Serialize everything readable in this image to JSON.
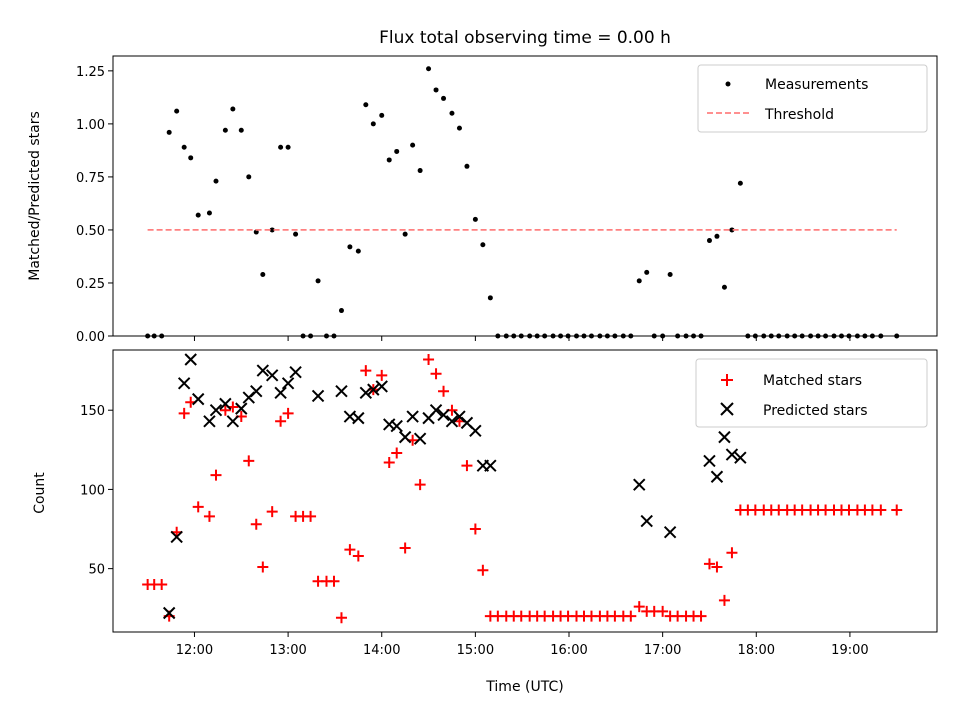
{
  "chart_data": {
    "type": "scatter",
    "title": "Flux total observing time = 0.00 h",
    "xlabel": "Time (UTC)",
    "x_unit": "hours UTC",
    "xlim": [
      11.13,
      19.93
    ],
    "x_ticks": [
      12,
      13,
      14,
      15,
      16,
      17,
      18,
      19
    ],
    "x_tick_labels": [
      "12:00",
      "13:00",
      "14:00",
      "15:00",
      "16:00",
      "17:00",
      "18:00",
      "19:00"
    ],
    "panels": [
      {
        "ylabel": "Matched/Predicted stars",
        "ylim": [
          0,
          1.32
        ],
        "y_ticks": [
          0,
          0.25,
          0.5,
          0.75,
          1.0,
          1.25
        ],
        "y_tick_labels": [
          "0.00",
          "0.25",
          "0.50",
          "0.75",
          "1.00",
          "1.25"
        ],
        "legend_position": "top-right",
        "series": [
          {
            "name": "Measurements",
            "marker": "dot",
            "color": "#000000",
            "points": [
              [
                11.5,
                0
              ],
              [
                11.57,
                0
              ],
              [
                11.65,
                0
              ],
              [
                11.73,
                0.96
              ],
              [
                11.81,
                1.06
              ],
              [
                11.89,
                0.89
              ],
              [
                11.96,
                0.84
              ],
              [
                12.04,
                0.57
              ],
              [
                12.16,
                0.58
              ],
              [
                12.23,
                0.73
              ],
              [
                12.33,
                0.97
              ],
              [
                12.41,
                1.07
              ],
              [
                12.5,
                0.97
              ],
              [
                12.58,
                0.75
              ],
              [
                12.66,
                0.49
              ],
              [
                12.73,
                0.29
              ],
              [
                12.83,
                0.5
              ],
              [
                12.92,
                0.89
              ],
              [
                13.0,
                0.89
              ],
              [
                13.08,
                0.48
              ],
              [
                13.16,
                0
              ],
              [
                13.24,
                0
              ],
              [
                13.32,
                0.26
              ],
              [
                13.41,
                0
              ],
              [
                13.49,
                0
              ],
              [
                13.57,
                0.12
              ],
              [
                13.66,
                0.42
              ],
              [
                13.75,
                0.4
              ],
              [
                13.83,
                1.09
              ],
              [
                13.91,
                1.0
              ],
              [
                14.0,
                1.04
              ],
              [
                14.08,
                0.83
              ],
              [
                14.16,
                0.87
              ],
              [
                14.25,
                0.48
              ],
              [
                14.33,
                0.9
              ],
              [
                14.41,
                0.78
              ],
              [
                14.5,
                1.26
              ],
              [
                14.58,
                1.16
              ],
              [
                14.66,
                1.12
              ],
              [
                14.75,
                1.05
              ],
              [
                14.83,
                0.98
              ],
              [
                14.91,
                0.8
              ],
              [
                15.0,
                0.55
              ],
              [
                15.08,
                0.43
              ],
              [
                15.16,
                0.18
              ],
              [
                15.24,
                0
              ],
              [
                15.33,
                0
              ],
              [
                15.41,
                0
              ],
              [
                15.49,
                0
              ],
              [
                15.58,
                0
              ],
              [
                15.66,
                0
              ],
              [
                15.74,
                0
              ],
              [
                15.83,
                0
              ],
              [
                15.91,
                0
              ],
              [
                15.99,
                0
              ],
              [
                16.08,
                0
              ],
              [
                16.16,
                0
              ],
              [
                16.24,
                0
              ],
              [
                16.33,
                0
              ],
              [
                16.41,
                0
              ],
              [
                16.49,
                0
              ],
              [
                16.58,
                0
              ],
              [
                16.66,
                0
              ],
              [
                16.75,
                0.26
              ],
              [
                16.83,
                0.3
              ],
              [
                16.91,
                0
              ],
              [
                17.0,
                0
              ],
              [
                17.08,
                0.29
              ],
              [
                17.16,
                0
              ],
              [
                17.25,
                0
              ],
              [
                17.33,
                0
              ],
              [
                17.41,
                0
              ],
              [
                17.5,
                0.45
              ],
              [
                17.58,
                0.47
              ],
              [
                17.66,
                0.23
              ],
              [
                17.74,
                0.5
              ],
              [
                17.83,
                0.72
              ],
              [
                17.91,
                0
              ],
              [
                17.99,
                0
              ],
              [
                18.08,
                0
              ],
              [
                18.16,
                0
              ],
              [
                18.24,
                0
              ],
              [
                18.33,
                0
              ],
              [
                18.41,
                0
              ],
              [
                18.49,
                0
              ],
              [
                18.58,
                0
              ],
              [
                18.66,
                0
              ],
              [
                18.74,
                0
              ],
              [
                18.83,
                0
              ],
              [
                18.91,
                0
              ],
              [
                18.99,
                0
              ],
              [
                19.08,
                0
              ],
              [
                19.16,
                0
              ],
              [
                19.24,
                0
              ],
              [
                19.33,
                0
              ],
              [
                19.5,
                0
              ]
            ]
          },
          {
            "name": "Threshold",
            "marker": "dashed-line",
            "color": "#ff8080",
            "points": [
              [
                11.5,
                0.5
              ],
              [
                19.5,
                0.5
              ]
            ]
          }
        ]
      },
      {
        "ylabel": "Count",
        "ylim": [
          10,
          188
        ],
        "y_ticks": [
          50,
          100,
          150
        ],
        "y_tick_labels": [
          "50",
          "100",
          "150"
        ],
        "legend_position": "top-right",
        "series": [
          {
            "name": "Matched stars",
            "marker": "plus",
            "color": "#ff0000",
            "points": [
              [
                11.5,
                40
              ],
              [
                11.57,
                40
              ],
              [
                11.65,
                40
              ],
              [
                11.73,
                20
              ],
              [
                11.81,
                73
              ],
              [
                11.89,
                148
              ],
              [
                11.96,
                155
              ],
              [
                12.04,
                89
              ],
              [
                12.16,
                83
              ],
              [
                12.23,
                109
              ],
              [
                12.33,
                150
              ],
              [
                12.41,
                152
              ],
              [
                12.5,
                146
              ],
              [
                12.58,
                118
              ],
              [
                12.66,
                78
              ],
              [
                12.73,
                51
              ],
              [
                12.83,
                86
              ],
              [
                12.92,
                143
              ],
              [
                13.0,
                148
              ],
              [
                13.08,
                83
              ],
              [
                13.16,
                83
              ],
              [
                13.24,
                83
              ],
              [
                13.32,
                42
              ],
              [
                13.41,
                42
              ],
              [
                13.49,
                42
              ],
              [
                13.57,
                19
              ],
              [
                13.66,
                62
              ],
              [
                13.75,
                58
              ],
              [
                13.83,
                175
              ],
              [
                13.91,
                163
              ],
              [
                14.0,
                172
              ],
              [
                14.08,
                117
              ],
              [
                14.16,
                123
              ],
              [
                14.25,
                63
              ],
              [
                14.33,
                131
              ],
              [
                14.41,
                103
              ],
              [
                14.5,
                182
              ],
              [
                14.58,
                173
              ],
              [
                14.66,
                162
              ],
              [
                14.75,
                150
              ],
              [
                14.83,
                143
              ],
              [
                14.91,
                115
              ],
              [
                15.0,
                75
              ],
              [
                15.08,
                49
              ],
              [
                15.16,
                20
              ],
              [
                15.24,
                20
              ],
              [
                15.33,
                20
              ],
              [
                15.41,
                20
              ],
              [
                15.49,
                20
              ],
              [
                15.58,
                20
              ],
              [
                15.66,
                20
              ],
              [
                15.74,
                20
              ],
              [
                15.83,
                20
              ],
              [
                15.91,
                20
              ],
              [
                15.99,
                20
              ],
              [
                16.08,
                20
              ],
              [
                16.16,
                20
              ],
              [
                16.24,
                20
              ],
              [
                16.33,
                20
              ],
              [
                16.41,
                20
              ],
              [
                16.49,
                20
              ],
              [
                16.58,
                20
              ],
              [
                16.66,
                20
              ],
              [
                16.75,
                26
              ],
              [
                16.83,
                23
              ],
              [
                16.91,
                23
              ],
              [
                17.0,
                23
              ],
              [
                17.08,
                20
              ],
              [
                17.16,
                20
              ],
              [
                17.25,
                20
              ],
              [
                17.33,
                20
              ],
              [
                17.41,
                20
              ],
              [
                17.5,
                53
              ],
              [
                17.58,
                51
              ],
              [
                17.66,
                30
              ],
              [
                17.74,
                60
              ],
              [
                17.83,
                87
              ],
              [
                17.91,
                87
              ],
              [
                17.99,
                87
              ],
              [
                18.08,
                87
              ],
              [
                18.16,
                87
              ],
              [
                18.24,
                87
              ],
              [
                18.33,
                87
              ],
              [
                18.41,
                87
              ],
              [
                18.49,
                87
              ],
              [
                18.58,
                87
              ],
              [
                18.66,
                87
              ],
              [
                18.74,
                87
              ],
              [
                18.83,
                87
              ],
              [
                18.91,
                87
              ],
              [
                18.99,
                87
              ],
              [
                19.08,
                87
              ],
              [
                19.16,
                87
              ],
              [
                19.24,
                87
              ],
              [
                19.33,
                87
              ],
              [
                19.5,
                87
              ]
            ]
          },
          {
            "name": "Predicted stars",
            "marker": "x",
            "color": "#000000",
            "points": [
              [
                11.73,
                22
              ],
              [
                11.81,
                70
              ],
              [
                11.89,
                167
              ],
              [
                11.96,
                182
              ],
              [
                12.04,
                157
              ],
              [
                12.16,
                143
              ],
              [
                12.23,
                150
              ],
              [
                12.33,
                154
              ],
              [
                12.41,
                143
              ],
              [
                12.5,
                151
              ],
              [
                12.58,
                158
              ],
              [
                12.66,
                162
              ],
              [
                12.73,
                175
              ],
              [
                12.83,
                172
              ],
              [
                12.92,
                161
              ],
              [
                13.0,
                167
              ],
              [
                13.08,
                174
              ],
              [
                13.32,
                159
              ],
              [
                13.57,
                162
              ],
              [
                13.66,
                146
              ],
              [
                13.75,
                145
              ],
              [
                13.83,
                161
              ],
              [
                13.91,
                163
              ],
              [
                14.0,
                165
              ],
              [
                14.08,
                141
              ],
              [
                14.16,
                140
              ],
              [
                14.25,
                133
              ],
              [
                14.33,
                146
              ],
              [
                14.41,
                132
              ],
              [
                14.5,
                145
              ],
              [
                14.58,
                150
              ],
              [
                14.66,
                147
              ],
              [
                14.75,
                143
              ],
              [
                14.83,
                146
              ],
              [
                14.91,
                142
              ],
              [
                15.0,
                137
              ],
              [
                15.08,
                115
              ],
              [
                15.16,
                115
              ],
              [
                16.75,
                103
              ],
              [
                16.83,
                80
              ],
              [
                17.08,
                73
              ],
              [
                17.5,
                118
              ],
              [
                17.58,
                108
              ],
              [
                17.66,
                133
              ],
              [
                17.74,
                122
              ],
              [
                17.83,
                120
              ]
            ]
          }
        ]
      }
    ]
  }
}
